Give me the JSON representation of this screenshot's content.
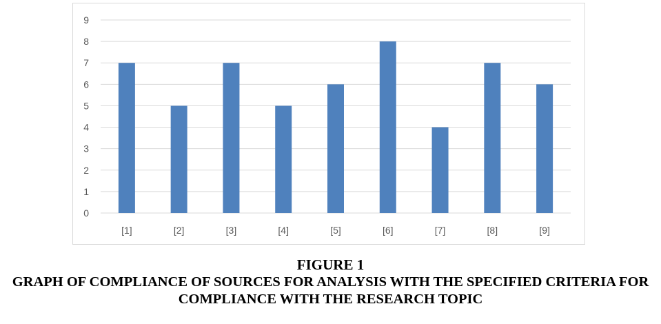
{
  "figure": {
    "label": "FIGURE 1",
    "caption": "GRAPH OF COMPLIANCE OF SOURCES FOR ANALYSIS WITH THE SPECIFIED CRITERIA FOR COMPLIANCE WITH THE RESEARCH TOPIC"
  },
  "chart_data": {
    "type": "bar",
    "categories": [
      "[1]",
      "[2]",
      "[3]",
      "[4]",
      "[5]",
      "[6]",
      "[7]",
      "[8]",
      "[9]"
    ],
    "values": [
      7,
      5,
      7,
      5,
      6,
      8,
      4,
      7,
      6
    ],
    "yticks": [
      "0",
      "1",
      "2",
      "3",
      "4",
      "5",
      "6",
      "7",
      "8",
      "9"
    ],
    "ylim": [
      0,
      9
    ],
    "grid": true,
    "legend": "none",
    "colors": {
      "bar": "#4f81bd",
      "grid": "#d9d9d9",
      "tick_text": "#595959"
    }
  }
}
